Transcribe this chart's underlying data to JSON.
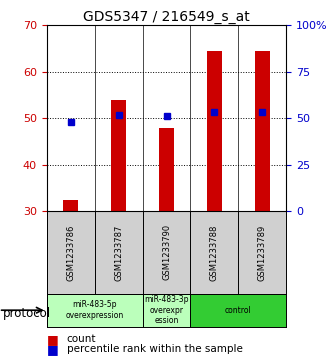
{
  "title": "GDS5347 / 216549_s_at",
  "samples": [
    "GSM1233786",
    "GSM1233787",
    "GSM1233790",
    "GSM1233788",
    "GSM1233789"
  ],
  "count_values": [
    32.5,
    54.0,
    48.0,
    64.5,
    64.5
  ],
  "percentile_values": [
    48.0,
    52.0,
    51.0,
    53.5,
    53.5
  ],
  "ylim_left": [
    30,
    70
  ],
  "ylim_right": [
    0,
    100
  ],
  "yticks_left": [
    30,
    40,
    50,
    60,
    70
  ],
  "yticks_right": [
    0,
    25,
    50,
    75,
    100
  ],
  "ytick_labels_right": [
    "0",
    "25",
    "50",
    "75",
    "100%"
  ],
  "bar_color": "#cc0000",
  "square_color": "#0000cc",
  "groups": [
    {
      "label": "miR-483-5p\noverexpression",
      "start": 0,
      "end": 2,
      "color": "#bbffbb"
    },
    {
      "label": "miR-483-3p\noverexpr\nession",
      "start": 2,
      "end": 3,
      "color": "#bbffbb"
    },
    {
      "label": "control",
      "start": 3,
      "end": 5,
      "color": "#33cc33"
    }
  ],
  "protocol_label": "protocol",
  "sample_bg_color": "#d0d0d0",
  "left_tick_color": "#cc0000",
  "right_tick_color": "#0000cc",
  "bar_bottom": 30,
  "bar_width": 0.3
}
